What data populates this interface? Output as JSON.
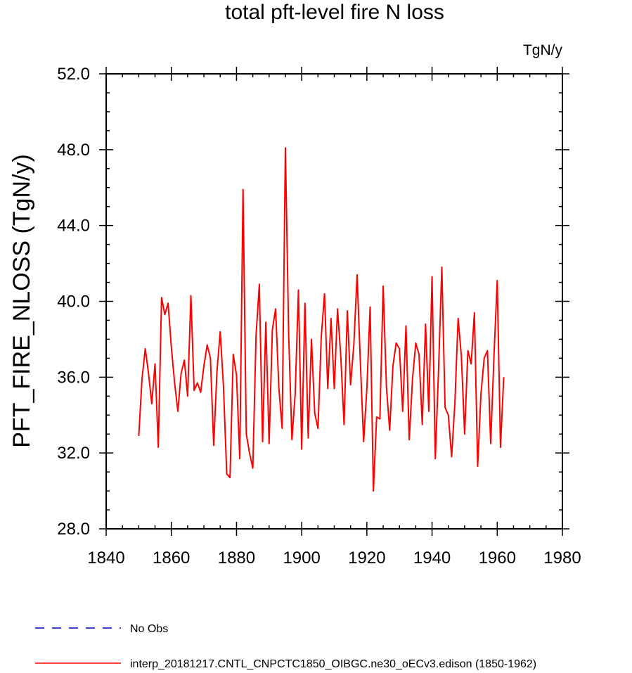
{
  "chart_data": {
    "type": "line",
    "title": "total pft-level fire N loss",
    "units_label": "TgN/y",
    "xlabel": "",
    "ylabel": "PFT_FIRE_NLOSS  (TgN/y)",
    "xlim": [
      1840,
      1980
    ],
    "ylim": [
      28.0,
      52.0
    ],
    "x_ticks": [
      1840,
      1860,
      1880,
      1900,
      1920,
      1940,
      1960,
      1980
    ],
    "x_tick_labels": [
      "1840",
      "1860",
      "1880",
      "1900",
      "1920",
      "1940",
      "1960",
      "1980"
    ],
    "y_ticks": [
      28.0,
      32.0,
      36.0,
      40.0,
      44.0,
      48.0,
      52.0
    ],
    "y_tick_labels": [
      "28.0",
      "32.0",
      "36.0",
      "40.0",
      "44.0",
      "48.0",
      "52.0"
    ],
    "grid": false,
    "legend_position": "bottom",
    "series": [
      {
        "name": "interp_20181217.CNTL_CNPCTC1850_OIBGC.ne30_oECv3.edison (1850-1962)",
        "color": "#ff0000",
        "style": "solid",
        "x": [
          1850,
          1851,
          1852,
          1853,
          1854,
          1855,
          1856,
          1857,
          1858,
          1859,
          1860,
          1861,
          1862,
          1863,
          1864,
          1865,
          1866,
          1867,
          1868,
          1869,
          1870,
          1871,
          1872,
          1873,
          1874,
          1875,
          1876,
          1877,
          1878,
          1879,
          1880,
          1881,
          1882,
          1883,
          1884,
          1885,
          1886,
          1887,
          1888,
          1889,
          1890,
          1891,
          1892,
          1893,
          1894,
          1895,
          1896,
          1897,
          1898,
          1899,
          1900,
          1901,
          1902,
          1903,
          1904,
          1905,
          1906,
          1907,
          1908,
          1909,
          1910,
          1911,
          1912,
          1913,
          1914,
          1915,
          1916,
          1917,
          1918,
          1919,
          1920,
          1921,
          1922,
          1923,
          1924,
          1925,
          1926,
          1927,
          1928,
          1929,
          1930,
          1931,
          1932,
          1933,
          1934,
          1935,
          1936,
          1937,
          1938,
          1939,
          1940,
          1941,
          1942,
          1943,
          1944,
          1945,
          1946,
          1947,
          1948,
          1949,
          1950,
          1951,
          1952,
          1953,
          1954,
          1955,
          1956,
          1957,
          1958,
          1959,
          1960,
          1961,
          1962
        ],
        "values": [
          32.9,
          35.9,
          37.5,
          36.2,
          34.6,
          36.7,
          32.3,
          40.2,
          39.3,
          39.9,
          37.6,
          35.7,
          34.2,
          36.2,
          36.9,
          35.0,
          40.3,
          35.3,
          35.7,
          35.2,
          36.6,
          37.7,
          37.0,
          32.4,
          36.3,
          38.4,
          35.5,
          30.9,
          30.7,
          37.2,
          36.1,
          31.7,
          45.9,
          33.0,
          32.0,
          31.2,
          38.2,
          40.9,
          32.6,
          38.9,
          32.5,
          38.5,
          39.6,
          35.4,
          33.3,
          48.1,
          38.3,
          32.7,
          35.1,
          40.6,
          32.2,
          39.9,
          32.8,
          38.0,
          34.1,
          33.3,
          38.1,
          40.4,
          35.4,
          39.1,
          35.4,
          39.6,
          37.1,
          33.5,
          39.5,
          35.6,
          37.7,
          41.4,
          36.8,
          32.6,
          35.4,
          39.7,
          30.0,
          33.9,
          33.8,
          40.8,
          35.5,
          33.2,
          36.6,
          37.8,
          37.5,
          34.2,
          38.7,
          32.7,
          35.9,
          37.8,
          37.2,
          33.5,
          38.8,
          34.2,
          41.3,
          31.7,
          36.4,
          41.8,
          34.4,
          34.0,
          31.8,
          34.6,
          39.1,
          37.1,
          33.0,
          37.4,
          36.7,
          39.4,
          31.3,
          35.1,
          37.0,
          37.4,
          32.5,
          37.1,
          41.1,
          32.3,
          36.0
        ]
      },
      {
        "name": "No Obs",
        "color": "#0000cc",
        "style": "dashed",
        "x": [],
        "values": []
      }
    ]
  }
}
